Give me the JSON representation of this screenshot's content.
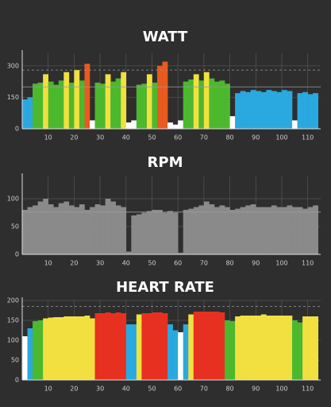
{
  "chart_data": [
    {
      "type": "bar",
      "title": "WATT",
      "x": [
        1,
        3,
        5,
        7,
        9,
        11,
        13,
        15,
        17,
        19,
        21,
        23,
        25,
        27,
        29,
        31,
        33,
        35,
        37,
        39,
        41,
        43,
        45,
        47,
        49,
        51,
        53,
        55,
        57,
        59,
        61,
        63,
        65,
        67,
        69,
        71,
        73,
        75,
        77,
        79,
        81,
        83,
        85,
        87,
        89,
        91,
        93,
        95,
        97,
        99,
        101,
        103,
        105,
        107,
        109,
        111,
        113
      ],
      "values": [
        140,
        150,
        215,
        220,
        260,
        225,
        210,
        230,
        270,
        220,
        280,
        230,
        310,
        40,
        220,
        215,
        260,
        225,
        240,
        270,
        30,
        40,
        210,
        215,
        260,
        220,
        300,
        320,
        30,
        20,
        40,
        225,
        235,
        260,
        230,
        270,
        240,
        225,
        230,
        215,
        60,
        170,
        180,
        175,
        185,
        180,
        175,
        185,
        180,
        175,
        185,
        180,
        40,
        170,
        175,
        165,
        170
      ],
      "zones": [
        {
          "min": 0,
          "color": "#ffffff"
        },
        {
          "min": 100,
          "color": "#2aa8e0"
        },
        {
          "min": 200,
          "color": "#4cb82e"
        },
        {
          "min": 250,
          "color": "#f2e040"
        },
        {
          "min": 290,
          "color": "#e85a1e"
        }
      ],
      "reference_lines": [
        {
          "value": 280,
          "style": "dashed"
        },
        {
          "value": 200,
          "style": "solid"
        }
      ],
      "xlim": [
        0,
        115
      ],
      "xticks": [
        10,
        20,
        30,
        40,
        50,
        60,
        70,
        80,
        90,
        100,
        110
      ],
      "ylim": [
        0,
        360
      ],
      "yticks": [
        0,
        150,
        300
      ],
      "grid": true
    },
    {
      "type": "bar",
      "title": "RPM",
      "x": [
        1,
        3,
        5,
        7,
        9,
        11,
        13,
        15,
        17,
        19,
        21,
        23,
        25,
        27,
        29,
        31,
        33,
        35,
        37,
        39,
        41,
        43,
        45,
        47,
        49,
        51,
        53,
        55,
        57,
        59,
        61,
        63,
        65,
        67,
        69,
        71,
        73,
        75,
        77,
        79,
        81,
        83,
        85,
        87,
        89,
        91,
        93,
        95,
        97,
        99,
        101,
        103,
        105,
        107,
        109,
        111,
        113
      ],
      "values": [
        80,
        85,
        88,
        95,
        100,
        90,
        85,
        92,
        95,
        88,
        85,
        90,
        80,
        85,
        90,
        88,
        100,
        95,
        88,
        85,
        5,
        70,
        72,
        75,
        78,
        80,
        80,
        75,
        78,
        75,
        3,
        80,
        82,
        85,
        88,
        95,
        90,
        85,
        88,
        85,
        80,
        82,
        85,
        88,
        90,
        85,
        85,
        85,
        88,
        85,
        85,
        88,
        85,
        85,
        82,
        85,
        88
      ],
      "zones": [
        {
          "min": 0,
          "color": "#8a8a8a"
        }
      ],
      "reference_lines": [
        {
          "value": 76,
          "style": "solid"
        }
      ],
      "xlim": [
        0,
        115
      ],
      "xticks": [
        10,
        20,
        30,
        40,
        50,
        60,
        70,
        80,
        90,
        100,
        110
      ],
      "ylim": [
        0,
        140
      ],
      "yticks": [
        0,
        50,
        100
      ],
      "grid": true
    },
    {
      "type": "bar",
      "title": "HEART RATE",
      "x": [
        1,
        3,
        5,
        7,
        9,
        11,
        13,
        15,
        17,
        19,
        21,
        23,
        25,
        27,
        29,
        31,
        33,
        35,
        37,
        39,
        41,
        43,
        45,
        47,
        49,
        51,
        53,
        55,
        57,
        59,
        61,
        63,
        65,
        67,
        69,
        71,
        73,
        75,
        77,
        79,
        81,
        83,
        85,
        87,
        89,
        91,
        93,
        95,
        97,
        99,
        101,
        103,
        105,
        107,
        109,
        111,
        113
      ],
      "values": [
        110,
        130,
        148,
        150,
        155,
        157,
        158,
        158,
        160,
        160,
        160,
        160,
        162,
        155,
        168,
        168,
        170,
        168,
        170,
        168,
        140,
        140,
        165,
        168,
        168,
        170,
        170,
        168,
        140,
        125,
        120,
        140,
        165,
        172,
        172,
        172,
        172,
        172,
        170,
        150,
        148,
        160,
        162,
        162,
        162,
        162,
        165,
        162,
        162,
        162,
        162,
        162,
        150,
        145,
        160,
        160,
        160
      ],
      "zones": [
        {
          "min": 0,
          "color": "#ffffff"
        },
        {
          "min": 125,
          "color": "#2aa8e0"
        },
        {
          "min": 145,
          "color": "#4cb82e"
        },
        {
          "min": 152,
          "color": "#f2e040"
        },
        {
          "min": 166,
          "color": "#e83020"
        }
      ],
      "reference_lines": [
        {
          "value": 185,
          "style": "dashed"
        }
      ],
      "xlim": [
        0,
        115
      ],
      "xticks": [
        10,
        20,
        30,
        40,
        50,
        60,
        70,
        80,
        90,
        100,
        110
      ],
      "ylim": [
        0,
        200
      ],
      "yticks": [
        0,
        50,
        100,
        150,
        200
      ],
      "grid": true
    }
  ]
}
